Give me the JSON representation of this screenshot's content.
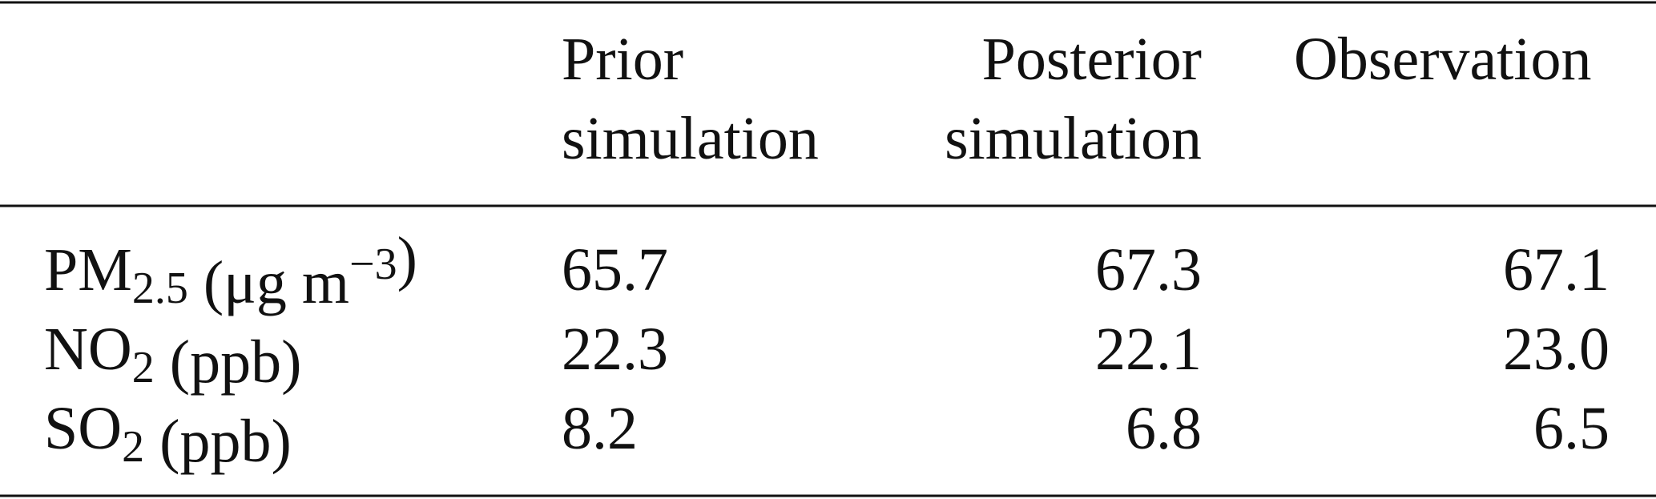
{
  "table": {
    "columns": [
      [
        "Prior",
        "simulation"
      ],
      [
        "Posterior",
        "simulation"
      ],
      [
        "Observation"
      ]
    ],
    "rows": [
      {
        "label": [
          {
            "text": "PM"
          },
          {
            "sub": "2.5"
          },
          {
            "text": " (μg m"
          },
          {
            "sup": "−3"
          },
          {
            "text": ")"
          }
        ],
        "values": [
          "65.7",
          "67.3",
          "67.1"
        ]
      },
      {
        "label": [
          {
            "text": "NO"
          },
          {
            "sub": "2"
          },
          {
            "text": " (ppb)"
          }
        ],
        "values": [
          "22.3",
          "22.1",
          "23.0"
        ]
      },
      {
        "label": [
          {
            "text": "SO"
          },
          {
            "sub": "2"
          },
          {
            "text": " (ppb)"
          }
        ],
        "values": [
          "8.2",
          "6.8",
          "6.5"
        ]
      }
    ]
  }
}
